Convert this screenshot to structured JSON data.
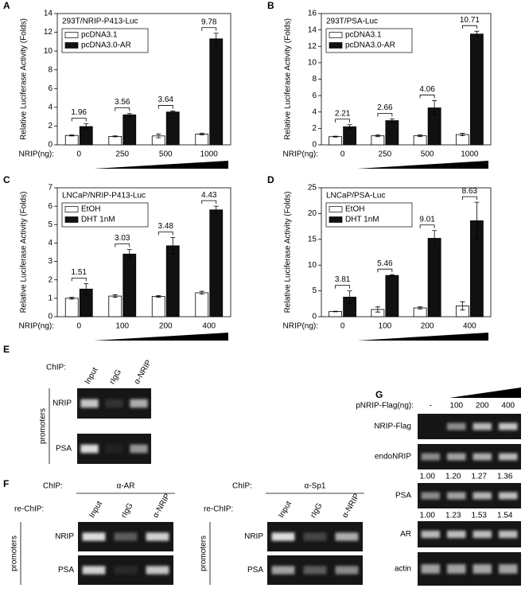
{
  "chart_data": [
    {
      "type": "bar",
      "panel": "A",
      "title": "293T/NRIP-P413-Luc",
      "y_label": "Relative Luciferase Activity (Folds)",
      "x_label": "NRIP(ng):",
      "categories": [
        "0",
        "250",
        "500",
        "1000"
      ],
      "ylim": [
        0,
        14
      ],
      "yticks": [
        0,
        2,
        4,
        6,
        8,
        10,
        12,
        14
      ],
      "series": [
        {
          "name": "pcDNA3.1",
          "color": "#ffffff",
          "values": [
            1,
            0.9,
            0.95,
            1.15
          ],
          "errors": [
            0.05,
            0.05,
            0.2,
            0.1
          ]
        },
        {
          "name": "pcDNA3.0-AR",
          "color": "#111111",
          "values": [
            1.95,
            3.2,
            3.5,
            11.3
          ],
          "errors": [
            0.3,
            0.15,
            0.1,
            0.6
          ]
        }
      ],
      "annotations": [
        1.96,
        3.56,
        3.64,
        9.78
      ]
    },
    {
      "type": "bar",
      "panel": "B",
      "title": "293T/PSA-Luc",
      "y_label": "Relative Luciferase Activity (Folds)",
      "x_label": "NRIP(ng):",
      "categories": [
        "0",
        "250",
        "500",
        "1000"
      ],
      "ylim": [
        0,
        16
      ],
      "yticks": [
        0,
        2,
        4,
        6,
        8,
        10,
        12,
        14,
        16
      ],
      "series": [
        {
          "name": "pcDNA3.1",
          "color": "#ffffff",
          "values": [
            1,
            1.1,
            1.1,
            1.25
          ],
          "errors": [
            0.05,
            0.1,
            0.1,
            0.15
          ]
        },
        {
          "name": "pcDNA3.0-AR",
          "color": "#111111",
          "values": [
            2.2,
            2.95,
            4.5,
            13.5
          ],
          "errors": [
            0.25,
            0.2,
            0.9,
            0.35
          ]
        }
      ],
      "annotations": [
        2.21,
        2.66,
        4.06,
        10.71
      ]
    },
    {
      "type": "bar",
      "panel": "C",
      "title": "LNCaP/NRIP-P413-Luc",
      "y_label": "Relative Luciferase Activity (Folds)",
      "x_label": "NRIP(ng):",
      "categories": [
        "0",
        "100",
        "200",
        "400"
      ],
      "ylim": [
        0,
        7
      ],
      "yticks": [
        0,
        1,
        2,
        3,
        4,
        5,
        6,
        7
      ],
      "series": [
        {
          "name": "EtOH",
          "color": "#ffffff",
          "values": [
            1,
            1.12,
            1.1,
            1.3
          ],
          "errors": [
            0.05,
            0.07,
            0.05,
            0.08
          ]
        },
        {
          "name": "DHT 1nM",
          "color": "#111111",
          "values": [
            1.5,
            3.4,
            3.85,
            5.8
          ],
          "errors": [
            0.3,
            0.25,
            0.45,
            0.2
          ]
        }
      ],
      "annotations": [
        1.51,
        3.03,
        3.48,
        4.43
      ]
    },
    {
      "type": "bar",
      "panel": "D",
      "title": "LNCaP/PSA-Luc",
      "y_label": "Relative Luciferase Activity (Folds)",
      "x_label": "NRIP(ng):",
      "categories": [
        "0",
        "100",
        "200",
        "400"
      ],
      "ylim": [
        0,
        25
      ],
      "yticks": [
        0,
        5,
        10,
        15,
        20,
        25
      ],
      "series": [
        {
          "name": "EtOH",
          "color": "#ffffff",
          "values": [
            1,
            1.4,
            1.7,
            2.1
          ],
          "errors": [
            0.05,
            0.5,
            0.2,
            0.8
          ]
        },
        {
          "name": "DHT 1nM",
          "color": "#111111",
          "values": [
            3.8,
            8.0,
            15.2,
            18.6
          ],
          "errors": [
            1.2,
            0.15,
            1.5,
            3.6
          ]
        }
      ],
      "annotations": [
        3.81,
        5.46,
        9.01,
        8.63
      ]
    }
  ],
  "gels": {
    "E": {
      "panel": "E",
      "chip_label": "ChIP:",
      "lanes": [
        "Input",
        "rIgG",
        "α-NRIP"
      ],
      "group_label": "promoters",
      "rows": [
        "NRIP",
        "PSA"
      ]
    },
    "F": {
      "panel": "F",
      "blots": [
        {
          "chip_label": "ChIP:",
          "antibody": "α-AR",
          "rechip_label": "re-ChIP:",
          "lanes": [
            "Input",
            "rIgG",
            "α-NRIP"
          ],
          "group_label": "promoters",
          "rows": [
            "NRIP",
            "PSA"
          ]
        },
        {
          "chip_label": "ChIP:",
          "antibody": "α-Sp1",
          "rechip_label": "re-ChIP:",
          "lanes": [
            "Input",
            "rIgG",
            "α-NRIP"
          ],
          "group_label": "promoters",
          "rows": [
            "NRIP",
            "PSA"
          ]
        }
      ]
    },
    "G": {
      "panel": "G",
      "header_label": "pNRIP-Flag(ng):",
      "lanes": [
        "-",
        "100",
        "200",
        "400"
      ],
      "rows": [
        {
          "label": "NRIP-Flag"
        },
        {
          "label": "endoNRIP",
          "ratios": [
            "1.00",
            "1.20",
            "1.27",
            "1.36"
          ]
        },
        {
          "label": "PSA",
          "ratios": [
            "1.00",
            "1.23",
            "1.53",
            "1.54"
          ]
        },
        {
          "label": "AR"
        },
        {
          "label": "actin"
        }
      ]
    }
  }
}
